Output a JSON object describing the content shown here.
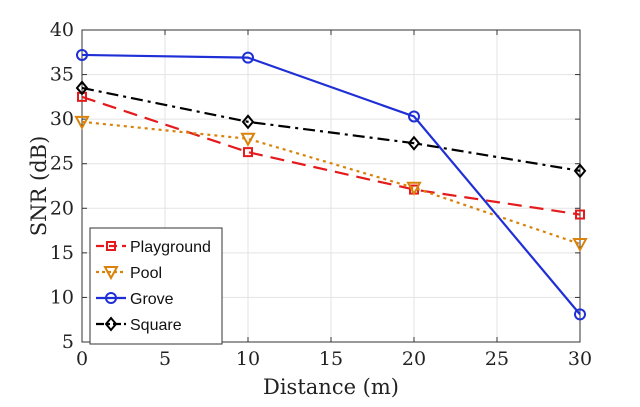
{
  "chart_data": {
    "type": "line",
    "xlabel": "Distance (m)",
    "ylabel": "SNR (dB)",
    "xlim": [
      0,
      30
    ],
    "ylim": [
      5,
      40
    ],
    "xticks": [
      0,
      5,
      10,
      15,
      20,
      25,
      30
    ],
    "yticks": [
      5,
      10,
      15,
      20,
      25,
      30,
      35,
      40
    ],
    "grid": true,
    "legend_position": "bottom-left",
    "x": [
      0,
      10,
      20,
      30
    ],
    "series": [
      {
        "name": "Playground",
        "values": [
          32.5,
          26.3,
          22.1,
          19.3
        ],
        "color": "#e41a1c",
        "dash": "dashed",
        "marker": "square"
      },
      {
        "name": "Pool",
        "values": [
          29.7,
          27.8,
          22.3,
          16.0
        ],
        "color": "#d9820c",
        "dash": "dotted",
        "marker": "triangle-down"
      },
      {
        "name": "Grove",
        "values": [
          37.2,
          36.9,
          30.3,
          8.1
        ],
        "color": "#1f2fd6",
        "dash": "solid",
        "marker": "circle"
      },
      {
        "name": "Square",
        "values": [
          33.5,
          29.7,
          27.3,
          24.2
        ],
        "color": "#000000",
        "dash": "dashdot",
        "marker": "diamond"
      }
    ]
  }
}
